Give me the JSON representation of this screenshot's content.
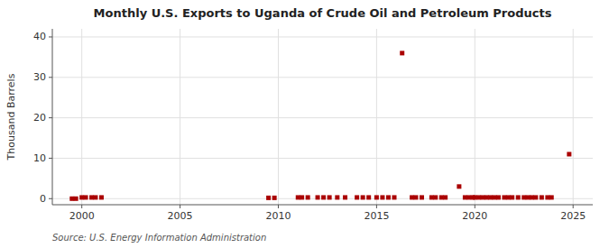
{
  "chart_data": {
    "type": "scatter",
    "title": "Monthly U.S. Exports to Uganda of Crude Oil and Petroleum Products",
    "ylabel": "Thousand Barrels",
    "annotation": "Source: U.S. Energy Information Administration",
    "color": "#aa0000",
    "marker": "square",
    "grid": true,
    "xlim": [
      1998.5,
      2026.0
    ],
    "ylim": [
      -1.5,
      42
    ],
    "xticks": [
      2000,
      2005,
      2010,
      2015,
      2020,
      2025
    ],
    "yticks": [
      0,
      10,
      20,
      30,
      40
    ],
    "x": [
      1999.5,
      1999.7,
      2000.0,
      2000.2,
      2000.5,
      2000.7,
      2001.0,
      2009.5,
      2009.8,
      2011.0,
      2011.2,
      2011.5,
      2012.0,
      2012.3,
      2012.6,
      2013.0,
      2013.4,
      2014.0,
      2014.3,
      2014.6,
      2015.0,
      2015.3,
      2015.6,
      2015.9,
      2016.3,
      2016.8,
      2017.0,
      2017.3,
      2017.8,
      2018.0,
      2018.3,
      2018.5,
      2019.2,
      2019.5,
      2019.7,
      2019.9,
      2020.0,
      2020.2,
      2020.4,
      2020.6,
      2020.8,
      2021.0,
      2021.2,
      2021.5,
      2021.7,
      2021.9,
      2022.2,
      2022.5,
      2022.7,
      2022.9,
      2023.1,
      2023.4,
      2023.7,
      2023.9,
      2024.8
    ],
    "values": [
      0.0,
      0.0,
      0.3,
      0.3,
      0.3,
      0.3,
      0.3,
      0.2,
      0.2,
      0.3,
      0.3,
      0.3,
      0.3,
      0.3,
      0.3,
      0.3,
      0.3,
      0.3,
      0.3,
      0.3,
      0.3,
      0.3,
      0.3,
      0.3,
      36.0,
      0.3,
      0.3,
      0.3,
      0.3,
      0.3,
      0.3,
      0.3,
      3.0,
      0.3,
      0.3,
      0.3,
      0.3,
      0.3,
      0.3,
      0.3,
      0.3,
      0.3,
      0.3,
      0.3,
      0.3,
      0.3,
      0.3,
      0.3,
      0.3,
      0.3,
      0.3,
      0.3,
      0.3,
      0.3,
      11.0
    ]
  }
}
